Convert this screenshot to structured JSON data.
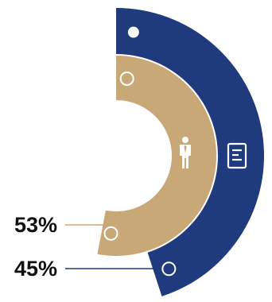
{
  "chart_data": {
    "type": "pie",
    "series": [
      {
        "name": "",
        "value": 45,
        "label": "45%",
        "color": "#1f3a7d",
        "icon": "document-icon"
      },
      {
        "name": "",
        "value": 53,
        "label": "53%",
        "color": "#c9a877",
        "icon": "person-icon"
      }
    ],
    "grid": false,
    "legend": "none"
  }
}
